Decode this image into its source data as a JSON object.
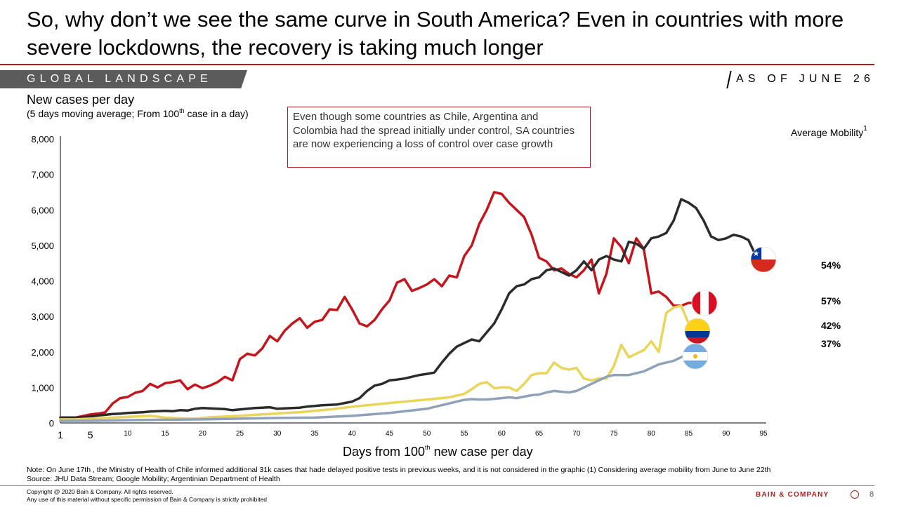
{
  "slide": {
    "title": "So, why don’t we see the same curve in South America? Even in countries with more severe lockdowns, the recovery is taking much longer",
    "section_label": "GLOBAL LANDSCAPE",
    "as_of": "AS OF JUNE 26",
    "chart_title": "New cases per day",
    "chart_subtitle_pre": "(5 days moving average; From 100",
    "chart_subtitle_sup": "th",
    "chart_subtitle_post": " case in a day)",
    "callout": "Even though some countries as Chile, Argentina and Colombia had the spread initially under control, SA countries are now experiencing a loss of control over case growth",
    "mobility_title": "Average Mobility",
    "mobility_sup": "1",
    "xlabel_pre": "Days from 100",
    "xlabel_sup": "th",
    "xlabel_post": " new case per day",
    "note": "Note: On June 17th , the Ministry of Health of Chile informed additional 31k cases that hade delayed positive tests in previous weeks, and it is not considered in the graphic (1) Considering average mobility from June to June 22th",
    "source": "Source: JHU Data Stream; Google Mobility; Argentinian Department of Health",
    "copyright_1": "Copyright @ 2020 Bain & Company. All rights reserved.",
    "copyright_2": "Any use of this material without specific permission of Bain & Company is strictly prohibited",
    "brand": "BAIN & COMPANY",
    "page_number": "8"
  },
  "mobility": [
    {
      "value": "54%",
      "color": "#3a4a5a",
      "flag": "chile"
    },
    {
      "value": "57%",
      "color": "#c4161c",
      "flag": "peru"
    },
    {
      "value": "42%",
      "color": "#d4b44a",
      "flag": "colombia"
    },
    {
      "value": "37%",
      "color": "#8fa2b8",
      "flag": "argentina"
    }
  ],
  "chart_data": {
    "type": "line",
    "xlabel": "Days from 100th new case per day",
    "ylabel": "New cases per day",
    "xlim": [
      1,
      95
    ],
    "ylim": [
      0,
      8000
    ],
    "x_ticks": [
      1,
      5,
      10,
      15,
      20,
      25,
      30,
      35,
      40,
      45,
      50,
      55,
      60,
      65,
      70,
      75,
      80,
      85,
      90,
      95
    ],
    "y_ticks": [
      0,
      1000,
      2000,
      3000,
      4000,
      5000,
      6000,
      7000,
      8000
    ],
    "y_tick_labels": [
      "0",
      "1,000",
      "2,000",
      "3,000",
      "4,000",
      "5,000",
      "6,000",
      "7,000",
      "8,000"
    ],
    "grid": false,
    "series": [
      {
        "color": "#c4161c",
        "x": [
          1,
          3,
          5,
          6,
          7,
          8,
          9,
          10,
          11,
          12,
          13,
          14,
          15,
          16,
          17,
          18,
          19,
          20,
          21,
          22,
          23,
          24,
          25,
          26,
          27,
          28,
          29,
          30,
          31,
          32,
          33,
          34,
          35,
          36,
          37,
          38,
          39,
          40,
          41,
          42,
          43,
          44,
          45,
          46,
          47,
          48,
          49,
          50,
          51,
          52,
          53,
          54,
          55,
          56,
          57,
          58,
          59,
          60,
          61,
          62,
          63,
          64,
          65,
          66,
          67,
          68,
          69,
          70,
          71,
          72,
          73,
          74,
          75,
          76,
          77,
          78,
          79,
          80,
          81,
          82,
          83,
          84,
          85,
          86,
          87,
          88
        ],
        "values": [
          150,
          150,
          240,
          260,
          300,
          550,
          700,
          730,
          850,
          900,
          1100,
          1000,
          1120,
          1150,
          1200,
          950,
          1080,
          980,
          1050,
          1150,
          1300,
          1200,
          1800,
          1950,
          1900,
          2100,
          2450,
          2300,
          2600,
          2800,
          2950,
          2680,
          2850,
          2900,
          3200,
          3180,
          3550,
          3200,
          2800,
          2720,
          2900,
          3200,
          3450,
          3950,
          4050,
          3720,
          3800,
          3900,
          4050,
          3850,
          4150,
          4100,
          4700,
          5000,
          5600,
          6000,
          6500,
          6450,
          6200,
          6000,
          5800,
          5300,
          4650,
          4550,
          4300,
          4350,
          4200,
          4100,
          4300,
          4600,
          3650,
          4200,
          5200,
          4950,
          4500,
          5200,
          4900,
          3650,
          3700,
          3550,
          3300,
          3300,
          3380,
          3380,
          3400,
          3400
        ]
      },
      {
        "color": "#2b2b2b",
        "x": [
          1,
          3,
          5,
          6,
          7,
          8,
          9,
          10,
          11,
          12,
          13,
          14,
          15,
          16,
          17,
          18,
          19,
          20,
          21,
          22,
          23,
          24,
          25,
          26,
          27,
          28,
          29,
          30,
          31,
          32,
          33,
          34,
          35,
          36,
          37,
          38,
          39,
          40,
          41,
          42,
          43,
          44,
          45,
          46,
          47,
          48,
          49,
          50,
          51,
          52,
          53,
          54,
          55,
          56,
          57,
          58,
          59,
          60,
          61,
          62,
          63,
          64,
          65,
          66,
          67,
          68,
          69,
          70,
          71,
          72,
          73,
          74,
          75,
          76,
          77,
          78,
          79,
          80,
          81,
          82,
          83,
          84,
          85,
          86,
          87,
          88,
          89,
          90,
          91,
          92,
          93,
          94
        ],
        "values": [
          150,
          150,
          180,
          210,
          230,
          250,
          260,
          280,
          290,
          300,
          320,
          330,
          340,
          330,
          360,
          350,
          400,
          420,
          410,
          400,
          390,
          360,
          380,
          400,
          420,
          430,
          440,
          400,
          410,
          420,
          430,
          460,
          480,
          500,
          510,
          520,
          560,
          600,
          700,
          900,
          1050,
          1100,
          1200,
          1220,
          1250,
          1300,
          1350,
          1380,
          1420,
          1700,
          1950,
          2150,
          2250,
          2350,
          2300,
          2550,
          2800,
          3200,
          3650,
          3850,
          3900,
          4050,
          4100,
          4300,
          4350,
          4250,
          4150,
          4300,
          4550,
          4300,
          4600,
          4700,
          4600,
          4550,
          5100,
          5050,
          4900,
          5200,
          5250,
          5350,
          5700,
          6300,
          6200,
          6050,
          5700,
          5250,
          5150,
          5200,
          5300,
          5250,
          5150,
          4700
        ]
      },
      {
        "color": "#e8d55a",
        "x": [
          1,
          3,
          5,
          7,
          9,
          11,
          13,
          15,
          17,
          19,
          21,
          23,
          25,
          27,
          29,
          31,
          33,
          35,
          37,
          39,
          41,
          43,
          45,
          47,
          49,
          51,
          53,
          55,
          56,
          57,
          58,
          59,
          60,
          61,
          62,
          63,
          64,
          65,
          66,
          67,
          68,
          69,
          70,
          71,
          72,
          73,
          74,
          75,
          76,
          77,
          78,
          79,
          80,
          81,
          82,
          83,
          84,
          85,
          86,
          87
        ],
        "values": [
          100,
          100,
          120,
          140,
          160,
          180,
          200,
          150,
          130,
          120,
          160,
          180,
          200,
          230,
          250,
          280,
          300,
          340,
          380,
          430,
          480,
          520,
          560,
          600,
          640,
          680,
          720,
          820,
          950,
          1100,
          1150,
          980,
          1000,
          1000,
          900,
          1100,
          1350,
          1400,
          1400,
          1700,
          1550,
          1500,
          1550,
          1250,
          1200,
          1250,
          1250,
          1600,
          2200,
          1850,
          1950,
          2050,
          2300,
          2000,
          3100,
          3250,
          3300,
          2800,
          2700,
          2600
        ]
      },
      {
        "color": "#8fa2b8",
        "x": [
          1,
          5,
          10,
          15,
          20,
          25,
          30,
          35,
          40,
          45,
          50,
          52,
          54,
          55,
          56,
          57,
          58,
          59,
          60,
          61,
          62,
          63,
          64,
          65,
          66,
          67,
          68,
          69,
          70,
          71,
          72,
          73,
          74,
          75,
          76,
          77,
          78,
          79,
          80,
          81,
          82,
          83,
          84,
          85,
          86
        ],
        "values": [
          60,
          60,
          80,
          90,
          100,
          120,
          140,
          150,
          200,
          280,
          400,
          500,
          600,
          650,
          670,
          660,
          660,
          680,
          700,
          720,
          700,
          740,
          780,
          800,
          860,
          900,
          880,
          860,
          900,
          1000,
          1100,
          1200,
          1300,
          1350,
          1350,
          1350,
          1400,
          1450,
          1550,
          1650,
          1700,
          1750,
          1850,
          1950,
          2100
        ]
      }
    ]
  }
}
